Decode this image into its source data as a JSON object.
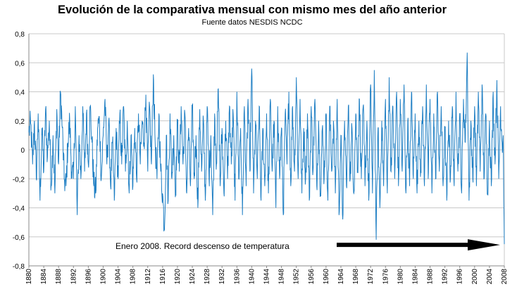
{
  "chart_data": {
    "type": "line",
    "title": "Evolución de la comparativa mensual con mismo mes del año anterior",
    "subtitle": "Fuente datos NESDIS NCDC",
    "xlabel": "",
    "ylabel": "",
    "xlim": [
      1880,
      2008
    ],
    "ylim": [
      -0.8,
      0.8
    ],
    "y_ticks": [
      "0,8",
      "0,6",
      "0,4",
      "0,2",
      "0",
      "-0,2",
      "-0,4",
      "-0,6",
      "-0,8"
    ],
    "x_ticks": [
      "1880",
      "1884",
      "1888",
      "1892",
      "1896",
      "1900",
      "1904",
      "1908",
      "1912",
      "1916",
      "1920",
      "1924",
      "1928",
      "1932",
      "1936",
      "1940",
      "1944",
      "1948",
      "1952",
      "1956",
      "1960",
      "1964",
      "1968",
      "1972",
      "1976",
      "1980",
      "1984",
      "1988",
      "1992",
      "1996",
      "2000",
      "2004",
      "2008"
    ],
    "grid": "horizontal",
    "series_color": "#1f7fc4",
    "annotation": {
      "text": "Enero 2008. Record descenso de temperatura",
      "arrow_color": "#000000",
      "target": {
        "x": 2008.0,
        "y": -0.65
      }
    },
    "series": [
      {
        "values": [
          [
            1880.0,
            0.12
          ],
          [
            1880.5,
            0.18
          ],
          [
            1881.0,
            -0.1
          ],
          [
            1881.5,
            0.2
          ],
          [
            1882.0,
            -0.2
          ],
          [
            1882.5,
            0.25
          ],
          [
            1883.0,
            -0.35
          ],
          [
            1883.5,
            0.15
          ],
          [
            1884.0,
            -0.15
          ],
          [
            1884.5,
            0.28
          ],
          [
            1885.0,
            -0.05
          ],
          [
            1885.5,
            0.2
          ],
          [
            1886.0,
            -0.25
          ],
          [
            1886.5,
            0.1
          ],
          [
            1887.0,
            -0.3
          ],
          [
            1887.5,
            0.28
          ],
          [
            1888.0,
            -0.1
          ],
          [
            1888.5,
            0.4
          ],
          [
            1889.0,
            0.15
          ],
          [
            1889.5,
            -0.2
          ],
          [
            1890.0,
            -0.25
          ],
          [
            1890.5,
            0.05
          ],
          [
            1891.0,
            0.2
          ],
          [
            1891.5,
            -0.15
          ],
          [
            1892.0,
            -0.2
          ],
          [
            1892.5,
            0.3
          ],
          [
            1893.0,
            -0.45
          ],
          [
            1893.5,
            0.1
          ],
          [
            1894.0,
            -0.2
          ],
          [
            1894.5,
            0.3
          ],
          [
            1895.0,
            -0.15
          ],
          [
            1895.5,
            0.25
          ],
          [
            1896.0,
            -0.1
          ],
          [
            1896.5,
            0.3
          ],
          [
            1897.0,
            0.05
          ],
          [
            1897.5,
            -0.25
          ],
          [
            1898.0,
            -0.3
          ],
          [
            1898.5,
            0.15
          ],
          [
            1899.0,
            0.2
          ],
          [
            1899.5,
            -0.2
          ],
          [
            1900.0,
            0.1
          ],
          [
            1900.5,
            0.35
          ],
          [
            1901.0,
            -0.1
          ],
          [
            1901.5,
            0.2
          ],
          [
            1902.0,
            -0.25
          ],
          [
            1902.5,
            0.05
          ],
          [
            1903.0,
            -0.35
          ],
          [
            1903.5,
            0.15
          ],
          [
            1904.0,
            -0.2
          ],
          [
            1904.5,
            0.25
          ],
          [
            1905.0,
            -0.1
          ],
          [
            1905.5,
            0.3
          ],
          [
            1906.0,
            -0.15
          ],
          [
            1906.5,
            0.2
          ],
          [
            1907.0,
            -0.3
          ],
          [
            1907.5,
            0.1
          ],
          [
            1908.0,
            -0.25
          ],
          [
            1908.5,
            0.15
          ],
          [
            1909.0,
            -0.2
          ],
          [
            1909.5,
            0.25
          ],
          [
            1910.0,
            -0.1
          ],
          [
            1910.5,
            0.2
          ],
          [
            1911.0,
            0.05
          ],
          [
            1911.5,
            0.38
          ],
          [
            1912.0,
            -0.15
          ],
          [
            1912.5,
            0.3
          ],
          [
            1913.0,
            -0.1
          ],
          [
            1913.5,
            0.52
          ],
          [
            1914.0,
            0.05
          ],
          [
            1914.5,
            -0.2
          ],
          [
            1915.0,
            0.25
          ],
          [
            1915.5,
            -0.15
          ],
          [
            1916.0,
            -0.3
          ],
          [
            1916.5,
            -0.55
          ],
          [
            1917.0,
            0.1
          ],
          [
            1917.5,
            -0.35
          ],
          [
            1918.0,
            0.25
          ],
          [
            1918.5,
            -0.2
          ],
          [
            1919.0,
            0.1
          ],
          [
            1919.5,
            -0.3
          ],
          [
            1920.0,
            0.2
          ],
          [
            1920.5,
            -0.15
          ],
          [
            1921.0,
            0.3
          ],
          [
            1921.5,
            -0.1
          ],
          [
            1922.0,
            0.25
          ],
          [
            1922.5,
            -0.3
          ],
          [
            1923.0,
            0.15
          ],
          [
            1923.5,
            -0.25
          ],
          [
            1924.0,
            0.3
          ],
          [
            1924.5,
            -0.2
          ],
          [
            1925.0,
            0.1
          ],
          [
            1925.5,
            -0.4
          ],
          [
            1926.0,
            0.28
          ],
          [
            1926.5,
            -0.15
          ],
          [
            1927.0,
            0.2
          ],
          [
            1927.5,
            -0.35
          ],
          [
            1928.0,
            0.3
          ],
          [
            1928.5,
            -0.2
          ],
          [
            1929.0,
            0.1
          ],
          [
            1929.5,
            -0.45
          ],
          [
            1930.0,
            0.25
          ],
          [
            1930.5,
            -0.1
          ],
          [
            1931.0,
            0.42
          ],
          [
            1931.5,
            -0.25
          ],
          [
            1932.0,
            0.15
          ],
          [
            1932.5,
            -0.3
          ],
          [
            1933.0,
            0.2
          ],
          [
            1933.5,
            -0.2
          ],
          [
            1934.0,
            0.3
          ],
          [
            1934.5,
            -0.1
          ],
          [
            1935.0,
            0.25
          ],
          [
            1935.5,
            -0.35
          ],
          [
            1936.0,
            0.4
          ],
          [
            1936.5,
            -0.2
          ],
          [
            1937.0,
            0.15
          ],
          [
            1937.5,
            -0.45
          ],
          [
            1938.0,
            0.3
          ],
          [
            1938.5,
            -0.25
          ],
          [
            1939.0,
            0.35
          ],
          [
            1939.5,
            -0.15
          ],
          [
            1940.0,
            0.56
          ],
          [
            1940.5,
            -0.3
          ],
          [
            1941.0,
            0.2
          ],
          [
            1941.5,
            -0.2
          ],
          [
            1942.0,
            0.3
          ],
          [
            1942.5,
            -0.35
          ],
          [
            1943.0,
            0.15
          ],
          [
            1943.5,
            -0.25
          ],
          [
            1944.0,
            0.25
          ],
          [
            1944.5,
            -0.3
          ],
          [
            1945.0,
            0.35
          ],
          [
            1945.5,
            -0.15
          ],
          [
            1946.0,
            0.2
          ],
          [
            1946.5,
            -0.4
          ],
          [
            1947.0,
            0.3
          ],
          [
            1947.5,
            -0.2
          ],
          [
            1948.0,
            0.15
          ],
          [
            1948.5,
            -0.45
          ],
          [
            1949.0,
            0.25
          ],
          [
            1949.5,
            -0.1
          ],
          [
            1950.0,
            0.4
          ],
          [
            1950.5,
            -0.25
          ],
          [
            1951.0,
            0.3
          ],
          [
            1951.5,
            -0.15
          ],
          [
            1952.0,
            0.5
          ],
          [
            1952.5,
            -0.2
          ],
          [
            1953.0,
            0.35
          ],
          [
            1953.5,
            -0.3
          ],
          [
            1954.0,
            0.15
          ],
          [
            1954.5,
            -0.2
          ],
          [
            1955.0,
            0.25
          ],
          [
            1955.5,
            -0.35
          ],
          [
            1956.0,
            0.3
          ],
          [
            1956.5,
            -0.15
          ],
          [
            1957.0,
            0.35
          ],
          [
            1957.5,
            -0.25
          ],
          [
            1958.0,
            0.2
          ],
          [
            1958.5,
            -0.3
          ],
          [
            1959.0,
            0.15
          ],
          [
            1959.5,
            -0.2
          ],
          [
            1960.0,
            0.25
          ],
          [
            1960.5,
            -0.35
          ],
          [
            1961.0,
            0.3
          ],
          [
            1961.5,
            -0.15
          ],
          [
            1962.0,
            0.2
          ],
          [
            1962.5,
            -0.3
          ],
          [
            1963.0,
            0.35
          ],
          [
            1963.5,
            -0.45
          ],
          [
            1964.0,
            0.1
          ],
          [
            1964.5,
            -0.48
          ],
          [
            1965.0,
            0.2
          ],
          [
            1965.5,
            -0.25
          ],
          [
            1966.0,
            0.3
          ],
          [
            1966.5,
            -0.2
          ],
          [
            1967.0,
            0.15
          ],
          [
            1967.5,
            -0.3
          ],
          [
            1968.0,
            0.25
          ],
          [
            1968.5,
            -0.15
          ],
          [
            1969.0,
            0.35
          ],
          [
            1969.5,
            -0.2
          ],
          [
            1970.0,
            0.3
          ],
          [
            1970.5,
            -0.25
          ],
          [
            1971.0,
            0.2
          ],
          [
            1971.5,
            -0.35
          ],
          [
            1972.0,
            0.45
          ],
          [
            1972.5,
            -0.3
          ],
          [
            1973.0,
            0.55
          ],
          [
            1973.5,
            -0.62
          ],
          [
            1974.0,
            0.15
          ],
          [
            1974.5,
            -0.4
          ],
          [
            1975.0,
            0.2
          ],
          [
            1975.5,
            -0.25
          ],
          [
            1976.0,
            0.35
          ],
          [
            1976.5,
            -0.3
          ],
          [
            1977.0,
            0.5
          ],
          [
            1977.5,
            -0.15
          ],
          [
            1978.0,
            0.3
          ],
          [
            1978.5,
            -0.2
          ],
          [
            1979.0,
            0.4
          ],
          [
            1979.5,
            -0.25
          ],
          [
            1980.0,
            0.35
          ],
          [
            1980.5,
            -0.15
          ],
          [
            1981.0,
            0.45
          ],
          [
            1981.5,
            -0.3
          ],
          [
            1982.0,
            0.2
          ],
          [
            1982.5,
            -0.25
          ],
          [
            1983.0,
            0.4
          ],
          [
            1983.5,
            -0.2
          ],
          [
            1984.0,
            0.25
          ],
          [
            1984.5,
            -0.3
          ],
          [
            1985.0,
            0.2
          ],
          [
            1985.5,
            -0.15
          ],
          [
            1986.0,
            0.3
          ],
          [
            1986.5,
            -0.25
          ],
          [
            1987.0,
            0.45
          ],
          [
            1987.5,
            -0.2
          ],
          [
            1988.0,
            0.35
          ],
          [
            1988.5,
            -0.3
          ],
          [
            1989.0,
            0.25
          ],
          [
            1989.5,
            -0.2
          ],
          [
            1990.0,
            0.4
          ],
          [
            1990.5,
            -0.15
          ],
          [
            1991.0,
            0.3
          ],
          [
            1991.5,
            -0.25
          ],
          [
            1992.0,
            0.15
          ],
          [
            1992.5,
            -0.35
          ],
          [
            1993.0,
            0.2
          ],
          [
            1993.5,
            -0.2
          ],
          [
            1994.0,
            0.3
          ],
          [
            1994.5,
            -0.25
          ],
          [
            1995.0,
            0.4
          ],
          [
            1995.5,
            -0.15
          ],
          [
            1996.0,
            0.25
          ],
          [
            1996.5,
            -0.3
          ],
          [
            1997.0,
            0.35
          ],
          [
            1997.5,
            0.05
          ],
          [
            1998.0,
            0.67
          ],
          [
            1998.5,
            -0.35
          ],
          [
            1999.0,
            0.2
          ],
          [
            1999.5,
            -0.2
          ],
          [
            2000.0,
            0.3
          ],
          [
            2000.5,
            -0.25
          ],
          [
            2001.0,
            0.4
          ],
          [
            2001.5,
            -0.15
          ],
          [
            2002.0,
            0.45
          ],
          [
            2002.5,
            -0.2
          ],
          [
            2003.0,
            0.25
          ],
          [
            2003.5,
            -0.3
          ],
          [
            2004.0,
            0.2
          ],
          [
            2004.5,
            -0.25
          ],
          [
            2005.0,
            0.4
          ],
          [
            2005.5,
            -0.1
          ],
          [
            2006.0,
            0.48
          ],
          [
            2006.5,
            -0.2
          ],
          [
            2007.0,
            0.3
          ],
          [
            2007.4,
            0.05
          ],
          [
            2007.7,
            0.1
          ],
          [
            2008.0,
            -0.65
          ]
        ]
      }
    ]
  }
}
